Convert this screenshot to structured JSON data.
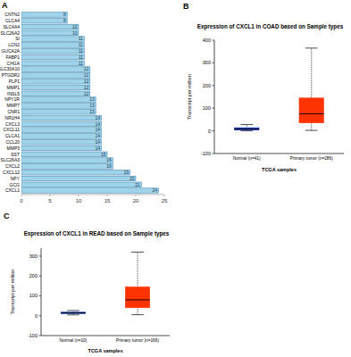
{
  "chart_data": [
    {
      "panel": "A",
      "type": "bar",
      "orientation": "horizontal",
      "categories": [
        "CNTN2",
        "CLCA4",
        "SLC4A4",
        "SLC26A2",
        "SI",
        "LCN2",
        "GUCA2A",
        "FABP1",
        "CHGA",
        "SLC30A10",
        "PTGDR2",
        "PLP1",
        "MMP1",
        "INSL5",
        "NPY1R",
        "MMP7",
        "CNR1",
        "NR1H4",
        "CXCL3",
        "CXCL11",
        "CLCA1",
        "CCL20",
        "MMP3",
        "SST",
        "SLC26A3",
        "CXCL2",
        "CXCL12",
        "NPY",
        "GCG",
        "CXCL1"
      ],
      "values": [
        8,
        8,
        10,
        10,
        11,
        11,
        11,
        11,
        11,
        12,
        12,
        12,
        12,
        12,
        13,
        13,
        13,
        14,
        14,
        14,
        14,
        14,
        14,
        15,
        16,
        16,
        19,
        20,
        21,
        24
      ],
      "color": "#9fd3ea",
      "xlim": [
        0,
        25
      ],
      "xticks": [
        0,
        5,
        10,
        15,
        20,
        25
      ],
      "data_labels": true,
      "grid": false
    },
    {
      "panel": "B",
      "type": "box",
      "title": "Expression of CXCL1 in COAD based on Sample types",
      "x_label": "TCGA samples",
      "y_label": "Transcript per million",
      "categories": [
        "Normal (n=41)",
        "Primary tumor (n=286)"
      ],
      "colors": [
        "#1f3fbf",
        "#ff3300"
      ],
      "boxes": [
        {
          "min": 0,
          "q1": 3,
          "median": 8,
          "q3": 14,
          "max": 28
        },
        {
          "min": 2,
          "q1": 35,
          "median": 75,
          "q3": 145,
          "max": 365
        }
      ],
      "ylim": [
        -100,
        400
      ],
      "yticks": [
        -100,
        0,
        100,
        200,
        300,
        400
      ],
      "grid": false
    },
    {
      "panel": "C",
      "type": "box",
      "title": "Expression of CXCL1 in READ based on Sample types",
      "x_label": "TCGA samples",
      "y_label": "Transcript per million",
      "categories": [
        "Normal (n=10)",
        "Primary tumor (n=166)"
      ],
      "colors": [
        "#1f3fbf",
        "#ff3300"
      ],
      "boxes": [
        {
          "min": 4,
          "q1": 10,
          "median": 14,
          "q3": 18,
          "max": 26
        },
        {
          "min": 5,
          "q1": 40,
          "median": 80,
          "q3": 145,
          "max": 320
        }
      ],
      "ylim": [
        -100,
        340
      ],
      "yticks": [
        -100,
        0,
        100,
        200,
        300
      ],
      "grid": false
    }
  ]
}
